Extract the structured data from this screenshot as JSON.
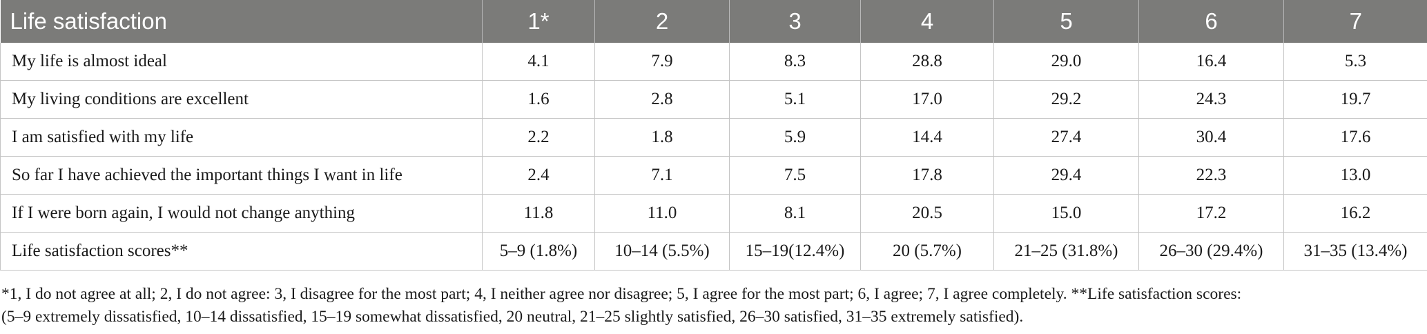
{
  "table": {
    "headers": [
      "Life satisfaction",
      "1*",
      "2",
      "3",
      "4",
      "5",
      "6",
      "7"
    ],
    "rows": [
      [
        "My life is almost ideal",
        "4.1",
        "7.9",
        "8.3",
        "28.8",
        "29.0",
        "16.4",
        "5.3"
      ],
      [
        "My living conditions are excellent",
        "1.6",
        "2.8",
        "5.1",
        "17.0",
        "29.2",
        "24.3",
        "19.7"
      ],
      [
        "I am satisfied with my life",
        "2.2",
        "1.8",
        "5.9",
        "14.4",
        "27.4",
        "30.4",
        "17.6"
      ],
      [
        "So far I have achieved the important things I want in life",
        "2.4",
        "7.1",
        "7.5",
        "17.8",
        "29.4",
        "22.3",
        "13.0"
      ],
      [
        "If I were born again, I would not change anything",
        "11.8",
        "11.0",
        "8.1",
        "20.5",
        "15.0",
        "17.2",
        "16.2"
      ],
      [
        "Life satisfaction scores**",
        "5–9 (1.8%)",
        "10–14 (5.5%)",
        "15–19(12.4%)",
        "20 (5.7%)",
        "21–25 (31.8%)",
        "26–30 (29.4%)",
        "31–35 (13.4%)"
      ]
    ]
  },
  "footnote": {
    "line1": "*1, I do not agree at all; 2, I do not agree: 3, I disagree for the most part; 4, I neither agree nor disagree; 5, I agree for the most part; 6, I agree; 7, I agree completely. **Life satisfaction scores:",
    "line2": "(5–9 extremely dissatisfied, 10–14 dissatisfied, 15–19 somewhat dissatisfied, 20 neutral, 21–25 slightly satisfied, 26–30 satisfied, 31–35 extremely satisfied)."
  },
  "colors": {
    "header_bg": "#7b7b79",
    "grid": "#c4c4c4"
  }
}
